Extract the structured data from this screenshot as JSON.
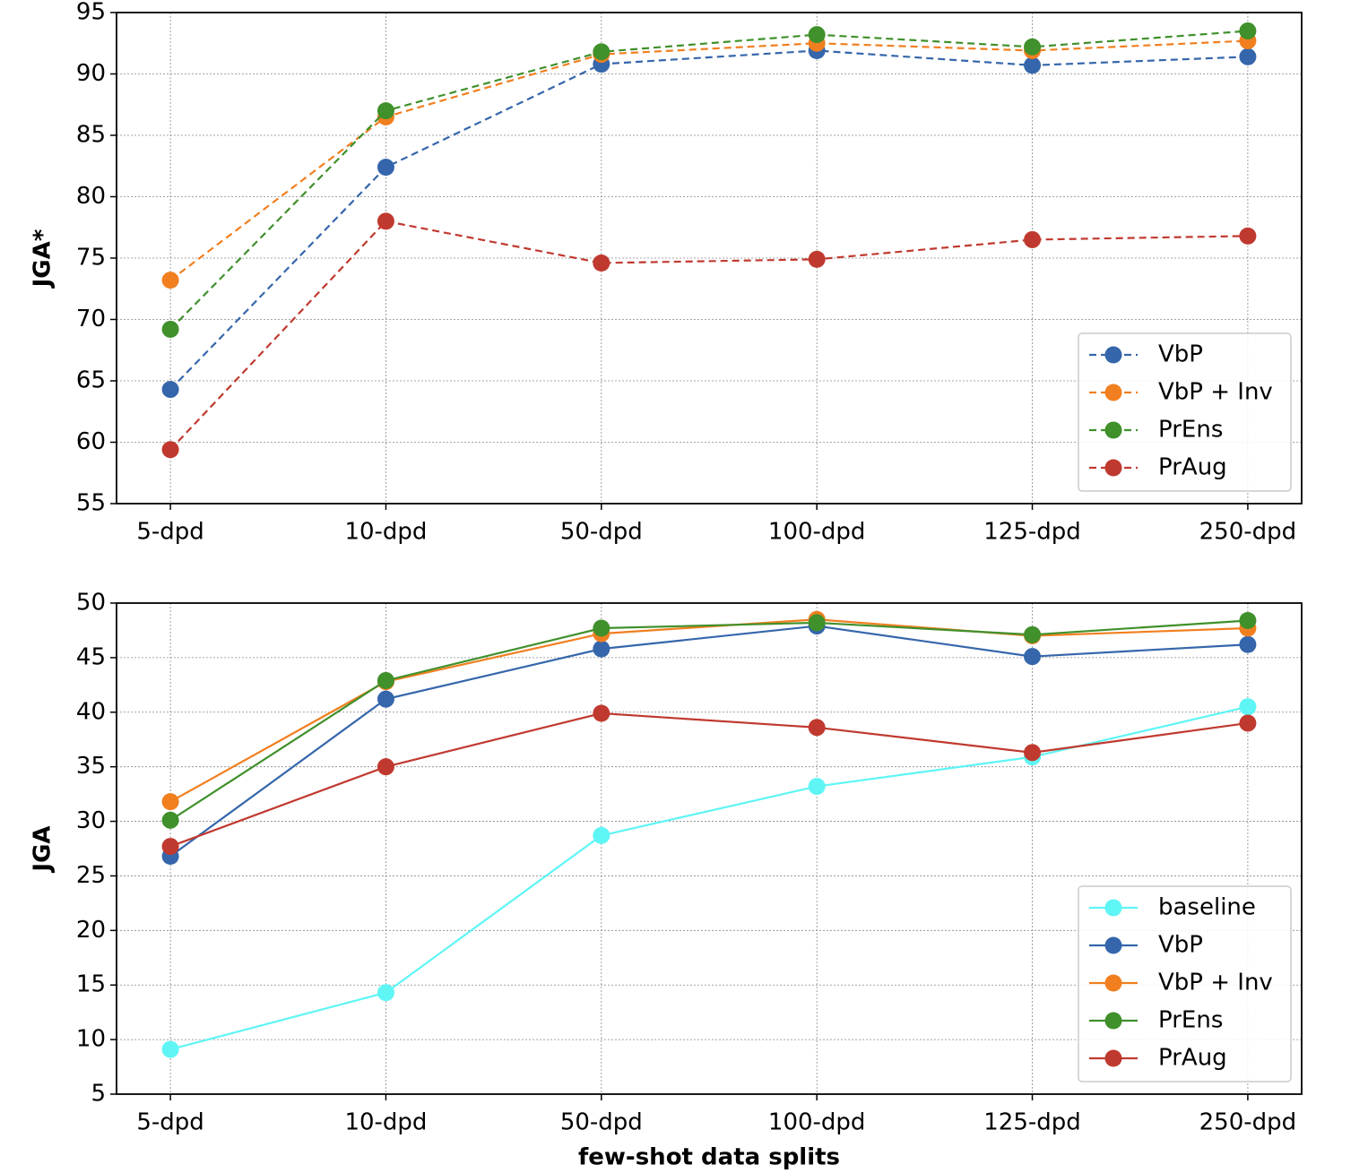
{
  "chart_data": [
    {
      "type": "line",
      "ylabel": "JGA*",
      "linestyle": "dashed",
      "grid": true,
      "legend": "lower right",
      "categories": [
        "5-dpd",
        "10-dpd",
        "50-dpd",
        "100-dpd",
        "125-dpd",
        "250-dpd"
      ],
      "ylim": [
        55,
        95
      ],
      "yticks": [
        55,
        60,
        65,
        70,
        75,
        80,
        85,
        90,
        95
      ],
      "series": [
        {
          "name": "VbP",
          "color": "#3566ab",
          "values": [
            64.3,
            82.4,
            90.8,
            91.9,
            90.7,
            91.4
          ]
        },
        {
          "name": "VbP + Inv",
          "color": "#f17f20",
          "values": [
            73.2,
            86.5,
            91.6,
            92.5,
            91.9,
            92.7
          ]
        },
        {
          "name": "PrEns",
          "color": "#40902b",
          "values": [
            69.2,
            87.0,
            91.8,
            93.2,
            92.2,
            93.5
          ]
        },
        {
          "name": "PrAug",
          "color": "#c0392f",
          "values": [
            59.4,
            78.0,
            74.6,
            74.9,
            76.5,
            76.8
          ]
        }
      ]
    },
    {
      "type": "line",
      "ylabel": "JGA",
      "xlabel": "few-shot data splits",
      "linestyle": "solid",
      "grid": true,
      "legend": "lower right",
      "categories": [
        "5-dpd",
        "10-dpd",
        "50-dpd",
        "100-dpd",
        "125-dpd",
        "250-dpd"
      ],
      "ylim": [
        5,
        50
      ],
      "yticks": [
        5,
        10,
        15,
        20,
        25,
        30,
        35,
        40,
        45,
        50
      ],
      "series": [
        {
          "name": "baseline",
          "color": "#5ff5f5",
          "values": [
            9.1,
            14.3,
            28.7,
            33.2,
            35.9,
            40.5
          ]
        },
        {
          "name": "VbP",
          "color": "#3566ab",
          "values": [
            26.8,
            41.2,
            45.8,
            47.9,
            45.1,
            46.2
          ]
        },
        {
          "name": "VbP + Inv",
          "color": "#f17f20",
          "values": [
            31.8,
            42.8,
            47.2,
            48.5,
            47.0,
            47.7
          ]
        },
        {
          "name": "PrEns",
          "color": "#40902b",
          "values": [
            30.1,
            42.9,
            47.7,
            48.2,
            47.1,
            48.4
          ]
        },
        {
          "name": "PrAug",
          "color": "#c0392f",
          "values": [
            27.7,
            35.0,
            39.9,
            38.6,
            36.3,
            39.0
          ]
        }
      ]
    }
  ]
}
